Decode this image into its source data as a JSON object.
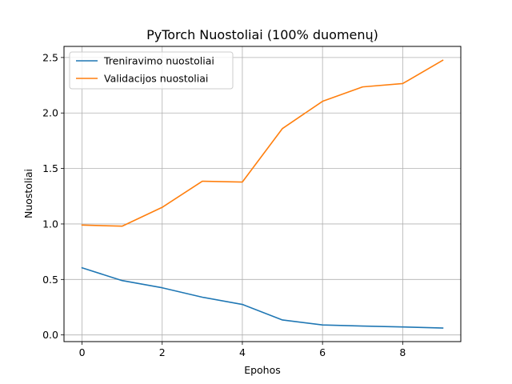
{
  "chart_data": {
    "type": "line",
    "title": "PyTorch Nuostoliai (100% duomenų)",
    "xlabel": "Epohos",
    "ylabel": "Nuostoliai",
    "x": [
      0,
      1,
      2,
      3,
      4,
      5,
      6,
      7,
      8,
      9
    ],
    "xlim": [
      -0.45,
      9.45
    ],
    "ylim": [
      -0.06,
      2.6
    ],
    "xticks": [
      0,
      2,
      4,
      6,
      8
    ],
    "yticks": [
      0.0,
      0.5,
      1.0,
      1.5,
      2.0,
      2.5
    ],
    "xtick_labels": [
      "0",
      "2",
      "4",
      "6",
      "8"
    ],
    "ytick_labels": [
      "0.0",
      "0.5",
      "1.0",
      "1.5",
      "2.0",
      "2.5"
    ],
    "grid": true,
    "legend_position": "upper-left",
    "series": [
      {
        "name": "Treniravimo nuostoliai",
        "color": "#1f77b4",
        "values": [
          0.605,
          0.49,
          0.425,
          0.34,
          0.275,
          0.135,
          0.09,
          0.08,
          0.072,
          0.062
        ]
      },
      {
        "name": "Validacijos nuostoliai",
        "color": "#ff7f0e",
        "values": [
          0.99,
          0.98,
          1.15,
          1.385,
          1.378,
          1.86,
          2.105,
          2.235,
          2.265,
          2.475
        ]
      }
    ]
  }
}
